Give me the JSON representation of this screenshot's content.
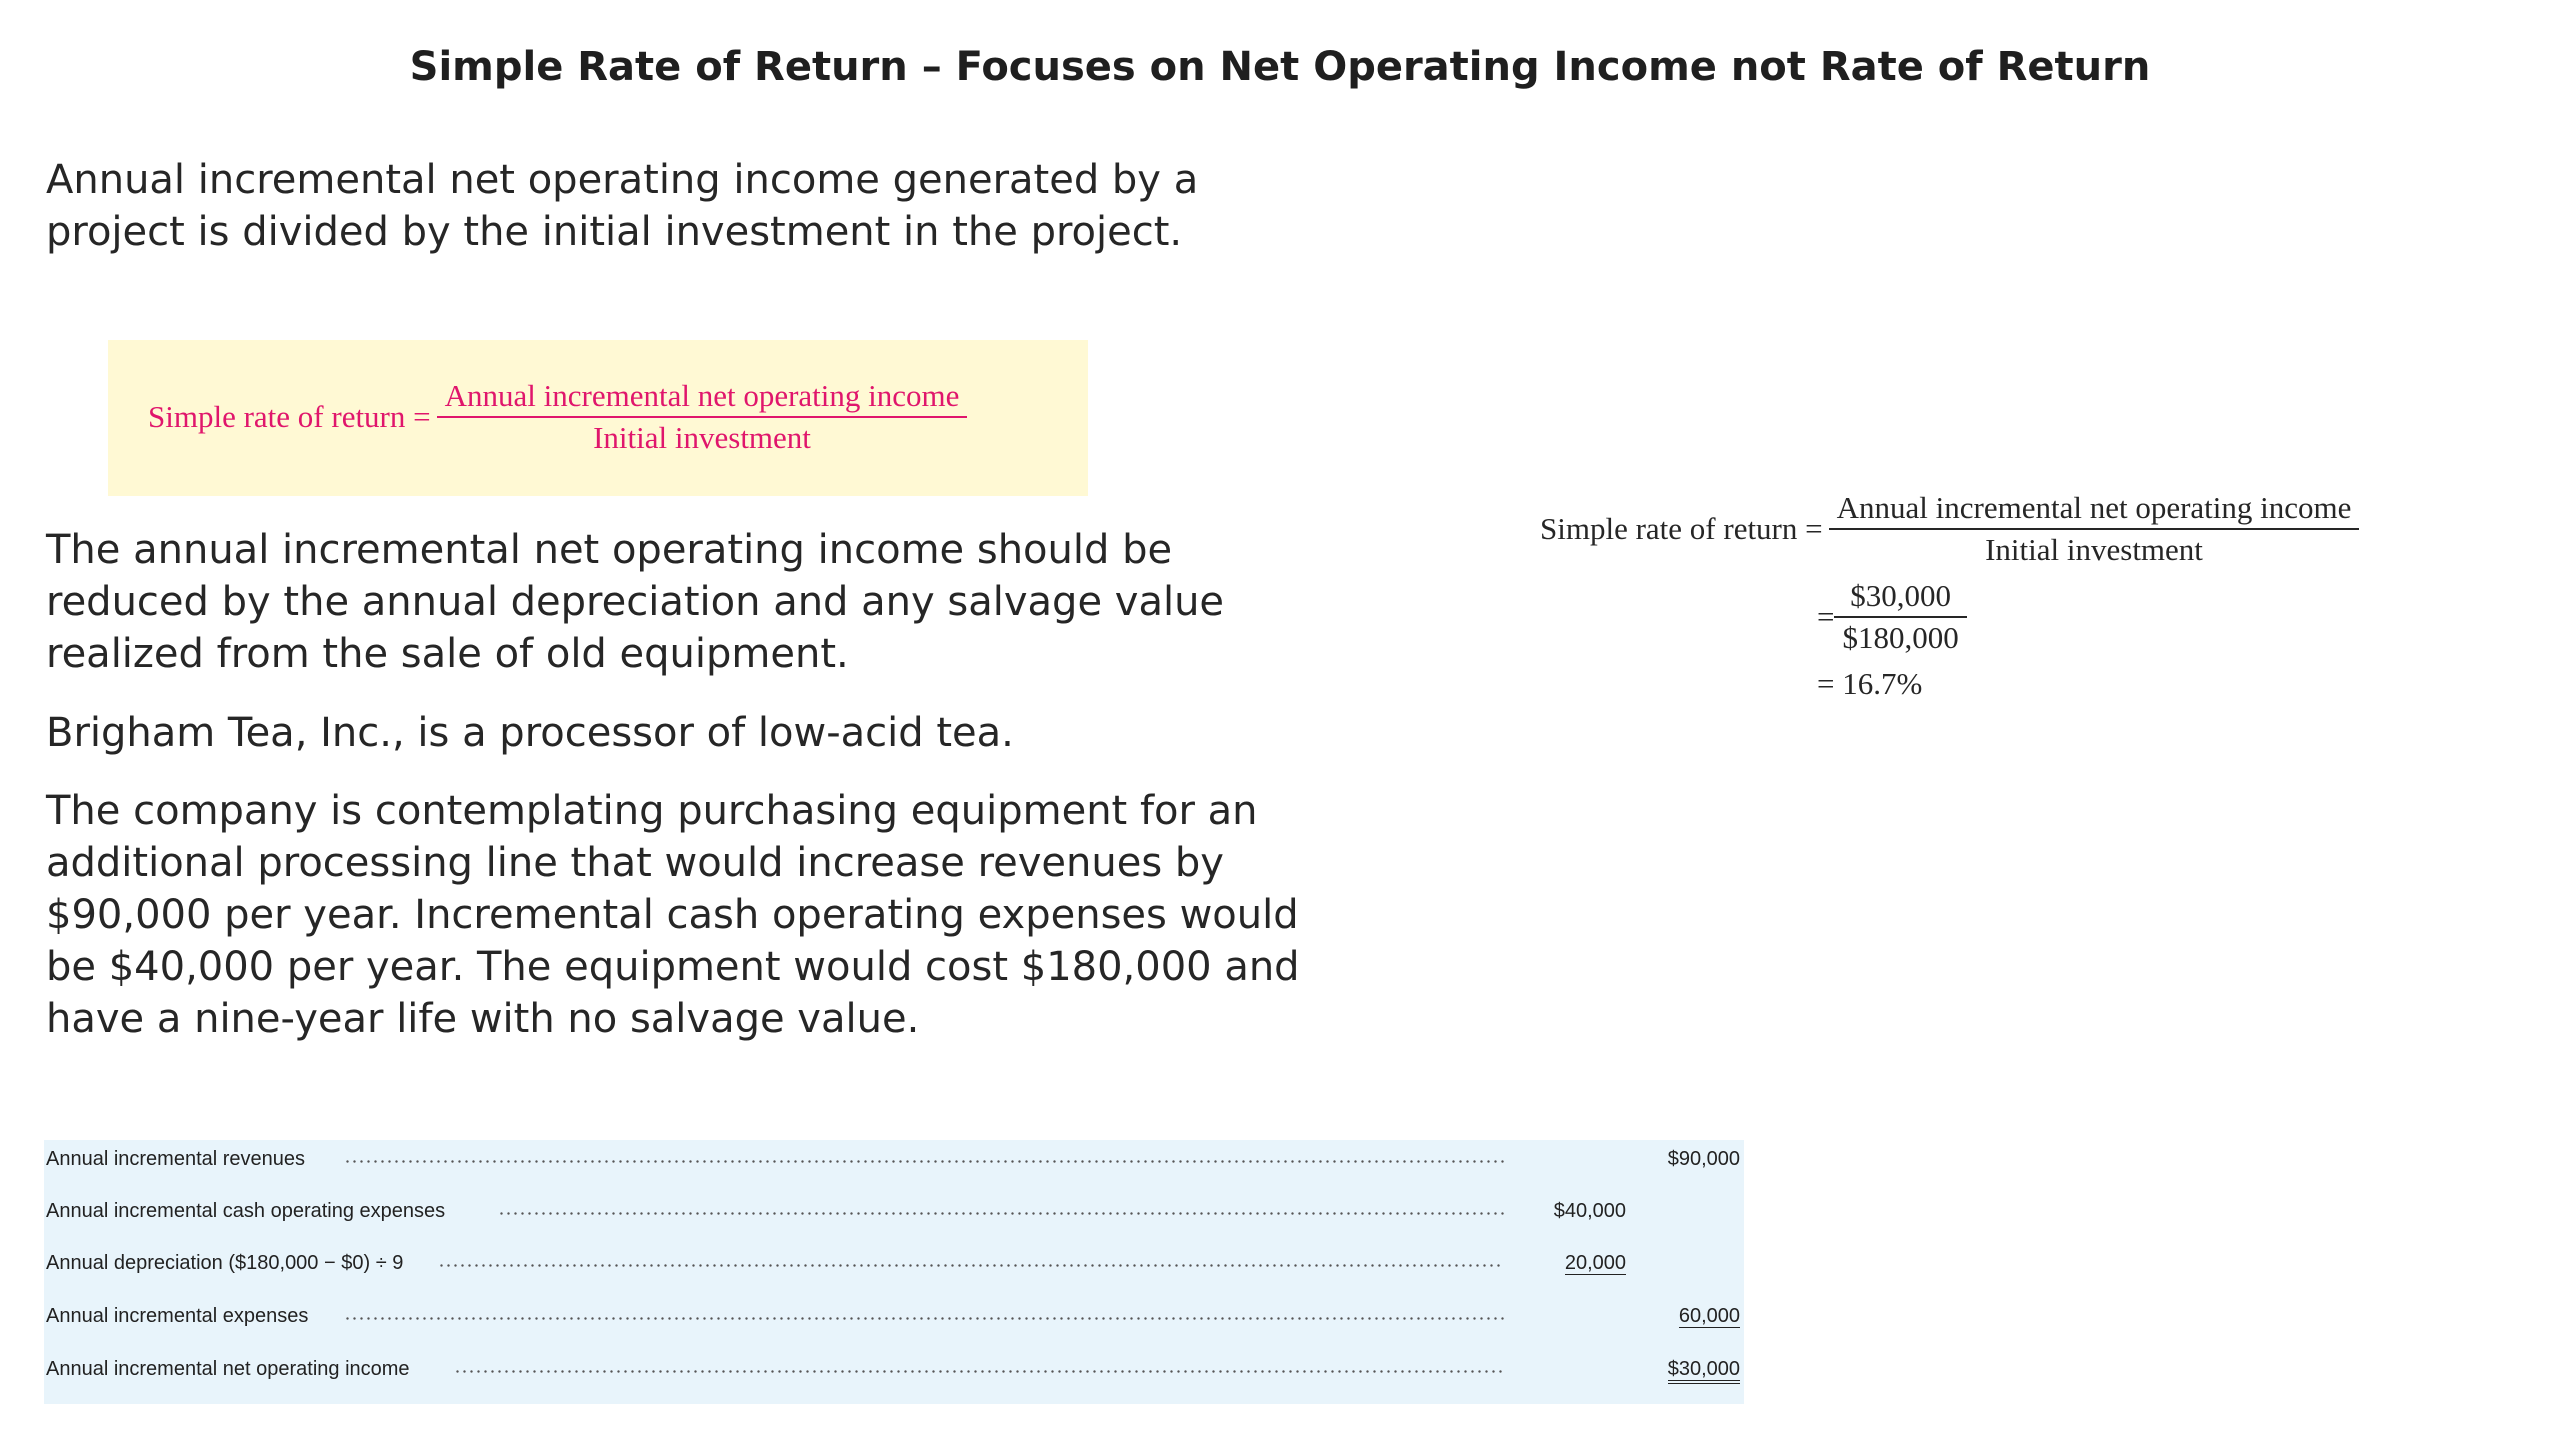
{
  "slide": {
    "title": "Simple Rate of Return – Focuses on Net Operating Income not Rate of Return",
    "intro": "Annual incremental net operating income generated by a project is divided by the initial investment in the project.",
    "reduce_note": "The annual incremental net operating income should be reduced by the annual depreciation and any salvage value realized from the sale of old equipment.",
    "brigham": "Brigham Tea, Inc., is a processor of low-acid tea.",
    "company": "The company is contemplating purchasing equipment for an additional processing line that would increase revenues by $90,000 per year. Incremental cash operating expenses would be $40,000 per year. The equipment would cost $180,000 and have a nine-year life with no salvage value."
  },
  "formula": {
    "lhs": "Simple rate of return =",
    "numerator": "Annual incremental net operating income",
    "denominator": "Initial investment",
    "color": "#e0166c",
    "background": "#fff9d4"
  },
  "calculation": {
    "lhs": "Simple rate of return =",
    "numerator": "Annual incremental net operating income",
    "denominator": "Initial investment",
    "eq": "=",
    "num_value": "$30,000",
    "den_value": "$180,000",
    "result": "= 16.7%"
  },
  "table": {
    "background": "#e8f4fb",
    "rows": [
      {
        "label": "Annual incremental revenues",
        "col1": "",
        "col2": "$90,000"
      },
      {
        "label": "Annual incremental cash operating expenses",
        "col1": "$40,000",
        "col2": ""
      },
      {
        "label": "Annual depreciation ($180,000 − $0) ÷ 9",
        "col1": "20,000",
        "col2": ""
      },
      {
        "label": "Annual incremental expenses",
        "col1": "",
        "col2": "60,000"
      },
      {
        "label": "Annual incremental net operating income",
        "col1": "",
        "col2": "$30,000"
      }
    ]
  }
}
